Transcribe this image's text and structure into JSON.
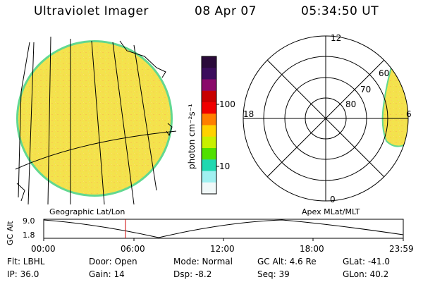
{
  "header": {
    "title": "Ultraviolet Imager",
    "date": "08 Apr 07",
    "time": "05:34:50 UT"
  },
  "colorbar": {
    "unit_label": "photon cm⁻²s⁻¹",
    "tick_100": "100",
    "tick_10": "10",
    "colors": [
      "#2a0a3a",
      "#3b0d5c",
      "#8a0a6a",
      "#c80000",
      "#f00000",
      "#ff7f00",
      "#ffd200",
      "#c8f000",
      "#50e000",
      "#20d8b0",
      "#a0f0f0",
      "#f0f8f8"
    ]
  },
  "left_panel": {
    "label": "Geographic Lat/Lon",
    "disk_color": "#f2e24a",
    "edge_color": "#6be0a0"
  },
  "right_panel": {
    "label": "Apex MLat/MLT",
    "mlt_12": "12",
    "mlt_18": "18",
    "mlt_6": "6",
    "mlt_0": "0",
    "lat_60": "60",
    "lat_70": "70",
    "lat_80": "80"
  },
  "altitude_plot": {
    "ylabel": "GC Alt",
    "y_top": "9.0",
    "y_bottom": "1.8",
    "x_ticks": [
      "00:00",
      "06:00",
      "12:00",
      "18:00",
      "23:59"
    ],
    "marker_color": "#cc0000"
  },
  "info": {
    "filter": "Flt: LBHL",
    "ip": "IP: 36.0",
    "door": "Door: Open",
    "gain": "Gain: 14",
    "mode": "Mode: Normal",
    "dsp": "Dsp:    -8.2",
    "gc_alt": "GC Alt: 4.6 Re",
    "seq": "Seq: 39",
    "glat": "GLat: -41.0",
    "glon": "GLon:  40.2"
  }
}
